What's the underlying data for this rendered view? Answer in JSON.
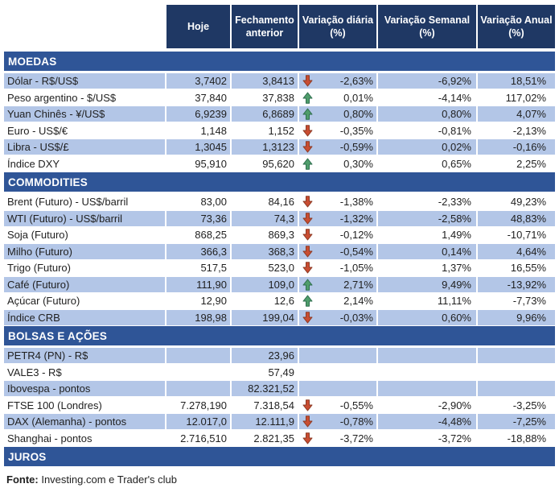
{
  "chart_data": {
    "type": "table",
    "columns": [
      "",
      "Hoje",
      "Fechamento anterior",
      "Variação diária (%)",
      "Variação Semanal (%)",
      "Variação Anual (%)"
    ],
    "sections": [
      {
        "title": "MOEDAS",
        "rows": [
          {
            "label": "Dólar - R$/US$",
            "hoje": "3,7402",
            "fechamento": "3,8413",
            "arrow": "down",
            "diaria": "-2,63%",
            "semanal": "-6,92%",
            "anual": "18,51%"
          },
          {
            "label": "Peso argentino - $/US$",
            "hoje": "37,840",
            "fechamento": "37,838",
            "arrow": "up",
            "diaria": "0,01%",
            "semanal": "-4,14%",
            "anual": "117,02%"
          },
          {
            "label": "Yuan Chinês - ¥/US$",
            "hoje": "6,9239",
            "fechamento": "6,8689",
            "arrow": "up",
            "diaria": "0,80%",
            "semanal": "0,80%",
            "anual": "4,07%"
          },
          {
            "label": "Euro - US$/€",
            "hoje": "1,148",
            "fechamento": "1,152",
            "arrow": "down",
            "diaria": "-0,35%",
            "semanal": "-0,81%",
            "anual": "-2,13%"
          },
          {
            "label": "Libra - US$/£",
            "hoje": "1,3045",
            "fechamento": "1,3123",
            "arrow": "down",
            "diaria": "-0,59%",
            "semanal": "0,02%",
            "anual": "-0,16%"
          },
          {
            "label": "Índice DXY",
            "hoje": "95,910",
            "fechamento": "95,620",
            "arrow": "up",
            "diaria": "0,30%",
            "semanal": "0,65%",
            "anual": "2,25%"
          }
        ]
      },
      {
        "title": "COMMODITIES",
        "rows": [
          {
            "label": "Brent (Futuro) - US$/barril",
            "hoje": "83,00",
            "fechamento": "84,16",
            "arrow": "down",
            "diaria": "-1,38%",
            "semanal": "-2,33%",
            "anual": "49,23%"
          },
          {
            "label": "WTI (Futuro) - US$/barril",
            "hoje": "73,36",
            "fechamento": "74,3",
            "arrow": "down",
            "diaria": "-1,32%",
            "semanal": "-2,58%",
            "anual": "48,83%"
          },
          {
            "label": "Soja (Futuro)",
            "hoje": "868,25",
            "fechamento": "869,3",
            "arrow": "down",
            "diaria": "-0,12%",
            "semanal": "1,49%",
            "anual": "-10,71%"
          },
          {
            "label": "Milho (Futuro)",
            "hoje": "366,3",
            "fechamento": "368,3",
            "arrow": "down",
            "diaria": "-0,54%",
            "semanal": "0,14%",
            "anual": "4,64%"
          },
          {
            "label": "Trigo (Futuro)",
            "hoje": "517,5",
            "fechamento": "523,0",
            "arrow": "down",
            "diaria": "-1,05%",
            "semanal": "1,37%",
            "anual": "16,55%"
          },
          {
            "label": "Café (Futuro)",
            "hoje": "111,90",
            "fechamento": "109,0",
            "arrow": "up",
            "diaria": "2,71%",
            "semanal": "9,49%",
            "anual": "-13,92%"
          },
          {
            "label": "Açúcar (Futuro)",
            "hoje": "12,90",
            "fechamento": "12,6",
            "arrow": "up",
            "diaria": "2,14%",
            "semanal": "11,11%",
            "anual": "-7,73%"
          },
          {
            "label": "Índice CRB",
            "hoje": "198,98",
            "fechamento": "199,04",
            "arrow": "down",
            "diaria": "-0,03%",
            "semanal": "0,60%",
            "anual": "9,96%"
          }
        ]
      },
      {
        "title": "BOLSAS E AÇÕES",
        "rows": [
          {
            "label": "PETR4 (PN) - R$",
            "hoje": "",
            "fechamento": "23,96",
            "arrow": "",
            "diaria": "",
            "semanal": "",
            "anual": ""
          },
          {
            "label": "VALE3 - R$",
            "hoje": "",
            "fechamento": "57,49",
            "arrow": "",
            "diaria": "",
            "semanal": "",
            "anual": ""
          },
          {
            "label": "Ibovespa - pontos",
            "hoje": "",
            "fechamento": "82.321,52",
            "arrow": "",
            "diaria": "",
            "semanal": "",
            "anual": ""
          },
          {
            "label": "FTSE 100 (Londres)",
            "hoje": "7.278,190",
            "fechamento": "7.318,54",
            "arrow": "down",
            "diaria": "-0,55%",
            "semanal": "-2,90%",
            "anual": "-3,25%"
          },
          {
            "label": "DAX (Alemanha) - pontos",
            "hoje": "12.017,0",
            "fechamento": "12.111,9",
            "arrow": "down",
            "diaria": "-0,78%",
            "semanal": "-4,48%",
            "anual": "-7,25%"
          },
          {
            "label": "Shanghai - pontos",
            "hoje": "2.716,510",
            "fechamento": "2.821,35",
            "arrow": "down",
            "diaria": "-3,72%",
            "semanal": "-3,72%",
            "anual": "-18,88%"
          }
        ]
      },
      {
        "title": "JUROS",
        "rows": []
      }
    ]
  },
  "footer": {
    "label": "Fonte:",
    "text": "Investing.com e Trader's club"
  },
  "colors": {
    "header_bg": "#1F3864",
    "section_bg": "#2F5597",
    "row_alt_bg": "#B3C6E7",
    "up_fill": "#4F9D6B",
    "up_stroke": "#2E6E4E",
    "down_fill": "#C94D32",
    "down_stroke": "#8B3A24"
  },
  "icons": {
    "up": "up-arrow-icon",
    "down": "down-arrow-icon"
  }
}
